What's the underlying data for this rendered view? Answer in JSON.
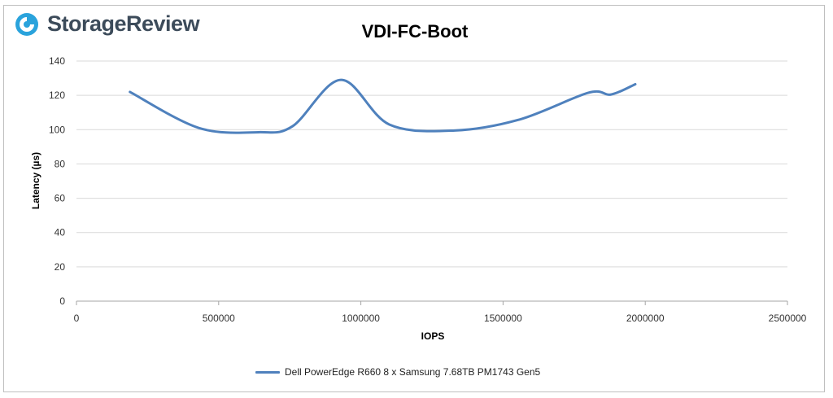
{
  "brand": {
    "name": "StorageReview",
    "accent": "#2aa3dc",
    "text_color": "#3c4b5a"
  },
  "chart_data": {
    "type": "line",
    "title": "VDI-FC-Boot",
    "xlabel": "IOPS",
    "ylabel": "Latency (µs)",
    "xlim": [
      0,
      2500000
    ],
    "ylim": [
      0,
      140
    ],
    "x_ticks": [
      0,
      500000,
      1000000,
      1500000,
      2000000,
      2500000
    ],
    "y_ticks": [
      0,
      20,
      40,
      60,
      80,
      100,
      120,
      140
    ],
    "grid": "horizontal",
    "legend_position": "bottom",
    "series": [
      {
        "name": "Dell PowerEdge R660 8 x Samsung 7.68TB PM1743 Gen5",
        "color": "#4f81bd",
        "x": [
          188000,
          430000,
          640000,
          760000,
          930000,
          1100000,
          1330000,
          1560000,
          1800000,
          1880000,
          1965000
        ],
        "y": [
          122,
          101,
          98.5,
          102,
          129,
          103,
          99.5,
          106,
          121.5,
          120.5,
          126.5
        ]
      }
    ]
  }
}
